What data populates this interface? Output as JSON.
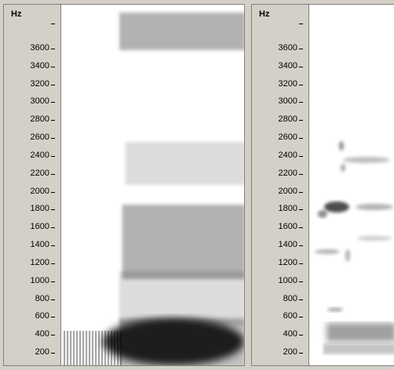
{
  "spectrogram_left": {
    "unit_label": "Hz",
    "ticks": [
      "3600",
      "3400",
      "3200",
      "3000",
      "2800",
      "2600",
      "2400",
      "2200",
      "2000",
      "1800",
      "1600",
      "1400",
      "1200",
      "1000",
      "800",
      "600",
      "400",
      "200"
    ]
  },
  "spectrogram_right": {
    "unit_label": "Hz",
    "ticks": [
      "3600",
      "3400",
      "3200",
      "3000",
      "2800",
      "2600",
      "2400",
      "2200",
      "2000",
      "1800",
      "1600",
      "1400",
      "1200",
      "1000",
      "800",
      "600",
      "400",
      "200"
    ]
  },
  "colors": {
    "frame": "#d4d0c8",
    "canvas": "#ffffff",
    "ink": "#000000"
  }
}
